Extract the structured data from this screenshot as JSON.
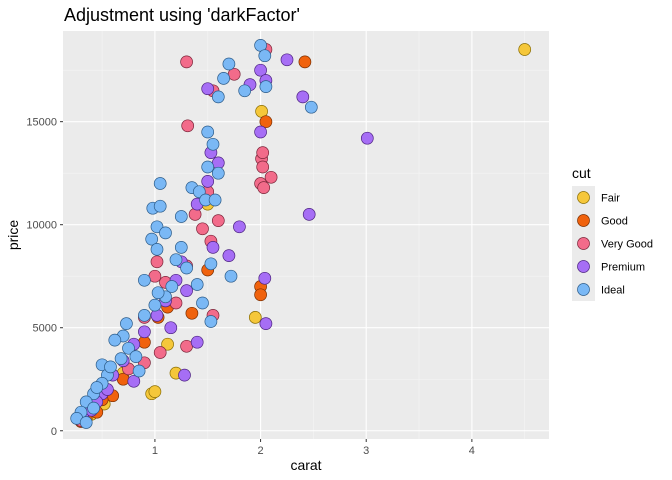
{
  "chart_data": {
    "type": "scatter",
    "title": "Adjustment using 'darkFactor'",
    "xlabel": "carat",
    "ylabel": "price",
    "xlim": [
      0.13,
      4.73
    ],
    "ylim": [
      -400,
      19400
    ],
    "x_ticks": [
      1,
      2,
      3,
      4
    ],
    "x_tick_labels": [
      "1",
      "2",
      "3",
      "4"
    ],
    "y_ticks": [
      0,
      5000,
      10000,
      15000
    ],
    "y_tick_labels": [
      "0",
      "5000",
      "10000",
      "15000"
    ],
    "grid": true,
    "legend_title": "cut",
    "legend_position": "right",
    "series": [
      {
        "name": "Fair",
        "color": "#f5c73a",
        "stroke": "#8a6d00",
        "points": [
          [
            4.5,
            18500
          ],
          [
            2.01,
            15500
          ],
          [
            1.95,
            5500
          ],
          [
            0.97,
            1800
          ],
          [
            1.12,
            4200
          ],
          [
            1.2,
            2800
          ],
          [
            0.52,
            1300
          ],
          [
            0.3,
            500
          ],
          [
            1.0,
            1900
          ],
          [
            0.7,
            2800
          ],
          [
            1.5,
            11000
          ],
          [
            0.4,
            800
          ]
        ]
      },
      {
        "name": "Good",
        "color": "#f0620d",
        "stroke": "#7a2e00",
        "points": [
          [
            2.42,
            17900
          ],
          [
            2.05,
            15000
          ],
          [
            2.0,
            7000
          ],
          [
            2.0,
            6600
          ],
          [
            1.35,
            5700
          ],
          [
            0.9,
            4300
          ],
          [
            0.6,
            1700
          ],
          [
            0.5,
            1500
          ],
          [
            0.35,
            600
          ],
          [
            1.12,
            6000
          ],
          [
            1.5,
            7800
          ],
          [
            0.7,
            2500
          ],
          [
            0.3,
            450
          ],
          [
            0.45,
            900
          ],
          [
            1.03,
            5500
          ]
        ]
      },
      {
        "name": "Very Good",
        "color": "#f26b8a",
        "stroke": "#7a2438",
        "points": [
          [
            1.3,
            17900
          ],
          [
            1.55,
            16500
          ],
          [
            2.05,
            18500
          ],
          [
            1.31,
            14800
          ],
          [
            2.01,
            13200
          ],
          [
            2.02,
            12800
          ],
          [
            2.0,
            12000
          ],
          [
            2.03,
            11800
          ],
          [
            1.5,
            11600
          ],
          [
            1.38,
            10500
          ],
          [
            1.6,
            10200
          ],
          [
            1.53,
            9200
          ],
          [
            1.02,
            8200
          ],
          [
            1.1,
            7200
          ],
          [
            1.2,
            6200
          ],
          [
            0.9,
            5500
          ],
          [
            1.3,
            4100
          ],
          [
            0.75,
            3000
          ],
          [
            0.5,
            2000
          ],
          [
            0.4,
            1100
          ],
          [
            0.3,
            500
          ],
          [
            1.75,
            17300
          ],
          [
            2.1,
            12300
          ],
          [
            1.45,
            9800
          ],
          [
            1.0,
            7500
          ],
          [
            1.3,
            8000
          ],
          [
            1.55,
            5600
          ],
          [
            0.9,
            3300
          ],
          [
            1.05,
            3800
          ],
          [
            2.02,
            13500
          ]
        ]
      },
      {
        "name": "Premium",
        "color": "#a66ef5",
        "stroke": "#4c2280",
        "points": [
          [
            1.5,
            16600
          ],
          [
            2.0,
            17500
          ],
          [
            2.25,
            18000
          ],
          [
            2.4,
            16200
          ],
          [
            3.01,
            14200
          ],
          [
            2.46,
            10500
          ],
          [
            2.05,
            5200
          ],
          [
            2.04,
            7400
          ],
          [
            1.6,
            13000
          ],
          [
            1.5,
            12100
          ],
          [
            1.4,
            11000
          ],
          [
            1.8,
            9900
          ],
          [
            1.55,
            8900
          ],
          [
            1.25,
            8200
          ],
          [
            1.3,
            6800
          ],
          [
            1.2,
            7300
          ],
          [
            1.1,
            6300
          ],
          [
            1.02,
            5600
          ],
          [
            0.9,
            4800
          ],
          [
            0.8,
            4200
          ],
          [
            0.7,
            3400
          ],
          [
            0.6,
            2700
          ],
          [
            0.5,
            1800
          ],
          [
            0.45,
            1400
          ],
          [
            0.4,
            1000
          ],
          [
            0.32,
            600
          ],
          [
            1.15,
            5000
          ],
          [
            1.4,
            4300
          ],
          [
            1.28,
            2700
          ],
          [
            1.7,
            8500
          ],
          [
            1.9,
            16800
          ],
          [
            2.05,
            17000
          ],
          [
            2.0,
            14500
          ],
          [
            1.53,
            13500
          ],
          [
            0.8,
            2400
          ],
          [
            0.55,
            2000
          ]
        ]
      },
      {
        "name": "Ideal",
        "color": "#7ab8f5",
        "stroke": "#2a5a88",
        "points": [
          [
            2.0,
            18700
          ],
          [
            2.04,
            18200
          ],
          [
            1.7,
            17800
          ],
          [
            1.65,
            17100
          ],
          [
            1.85,
            16500
          ],
          [
            1.6,
            16200
          ],
          [
            2.05,
            16700
          ],
          [
            2.48,
            15700
          ],
          [
            1.5,
            14500
          ],
          [
            1.55,
            13900
          ],
          [
            1.05,
            12000
          ],
          [
            1.6,
            12500
          ],
          [
            1.35,
            11800
          ],
          [
            1.42,
            11600
          ],
          [
            1.48,
            11200
          ],
          [
            0.98,
            10800
          ],
          [
            1.25,
            10400
          ],
          [
            1.02,
            9900
          ],
          [
            1.5,
            12800
          ],
          [
            1.1,
            9600
          ],
          [
            0.97,
            9300
          ],
          [
            1.02,
            8800
          ],
          [
            1.25,
            8900
          ],
          [
            1.2,
            8300
          ],
          [
            1.3,
            7900
          ],
          [
            1.53,
            8100
          ],
          [
            1.4,
            7100
          ],
          [
            1.16,
            7000
          ],
          [
            0.9,
            7300
          ],
          [
            1.1,
            6500
          ],
          [
            1.0,
            6100
          ],
          [
            1.45,
            6200
          ],
          [
            1.53,
            5300
          ],
          [
            0.73,
            5200
          ],
          [
            0.9,
            5600
          ],
          [
            1.03,
            6700
          ],
          [
            0.7,
            4600
          ],
          [
            0.62,
            4400
          ],
          [
            0.75,
            4000
          ],
          [
            0.82,
            3600
          ],
          [
            0.5,
            3200
          ],
          [
            0.55,
            2700
          ],
          [
            0.5,
            2300
          ],
          [
            0.42,
            1800
          ],
          [
            0.35,
            1400
          ],
          [
            0.3,
            900
          ],
          [
            0.26,
            600
          ],
          [
            0.42,
            1100
          ],
          [
            0.58,
            3100
          ],
          [
            0.68,
            3500
          ],
          [
            0.35,
            400
          ],
          [
            1.05,
            10900
          ],
          [
            1.57,
            11200
          ],
          [
            1.72,
            7500
          ],
          [
            0.85,
            2900
          ],
          [
            0.45,
            2100
          ]
        ]
      }
    ]
  }
}
